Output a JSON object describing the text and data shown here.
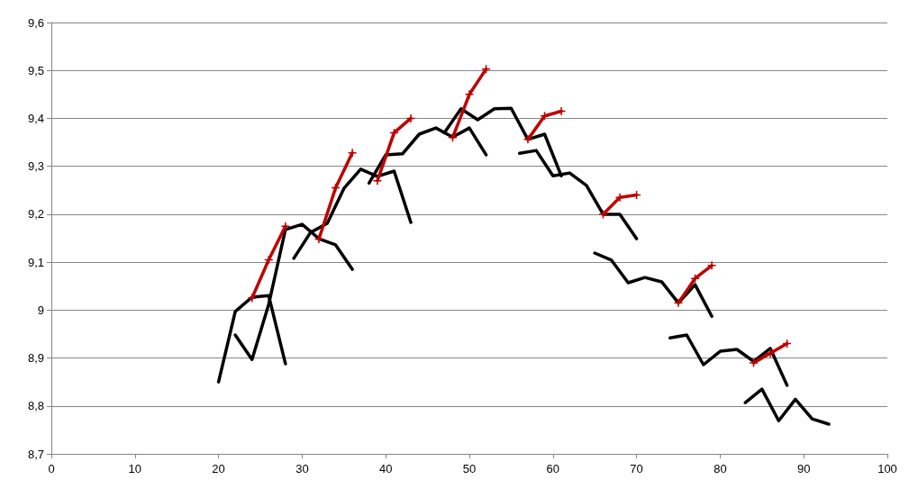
{
  "chart_data": {
    "type": "line",
    "grid": "y",
    "line_style": "solid",
    "xlim": [
      0,
      100
    ],
    "xticks": [
      0,
      10,
      20,
      30,
      40,
      50,
      60,
      70,
      80,
      90,
      100
    ],
    "ylim": [
      8.7,
      9.6
    ],
    "yticks": [
      {
        "value": 8.7,
        "label": "8,7"
      },
      {
        "value": 8.8,
        "label": "8,8"
      },
      {
        "value": 8.9,
        "label": "8,9"
      },
      {
        "value": 9,
        "label": "9"
      },
      {
        "value": 9.1,
        "label": "9,1"
      },
      {
        "value": 9.2,
        "label": "9,2"
      },
      {
        "value": 9.3,
        "label": "9,3"
      },
      {
        "value": 9.4,
        "label": "9,4"
      },
      {
        "value": 9.5,
        "label": "9,5"
      },
      {
        "value": 9.6,
        "label": "9,6"
      }
    ],
    "series": [
      {
        "color": "#000000",
        "marker": "none",
        "x": [
          20,
          22,
          24,
          26,
          28
        ],
        "values": [
          8.85,
          8.997,
          9.027,
          9.03,
          8.888
        ]
      },
      {
        "color": "#000000",
        "marker": "none",
        "x": [
          22,
          24,
          26,
          28,
          30,
          32,
          34,
          36
        ],
        "values": [
          8.948,
          8.897,
          9.012,
          9.168,
          9.179,
          9.149,
          9.136,
          9.085
        ]
      },
      {
        "color": "#000000",
        "marker": "none",
        "x": [
          29,
          31,
          33,
          35,
          37,
          39,
          41,
          43
        ],
        "values": [
          9.108,
          9.162,
          9.181,
          9.254,
          9.294,
          9.279,
          9.29,
          9.183
        ]
      },
      {
        "color": "#000000",
        "marker": "none",
        "x": [
          38,
          40,
          42,
          44,
          46,
          48,
          50,
          52
        ],
        "values": [
          9.265,
          9.324,
          9.326,
          9.367,
          9.38,
          9.361,
          9.38,
          9.324
        ]
      },
      {
        "color": "#000000",
        "marker": "none",
        "x": [
          47,
          49,
          51,
          53,
          55,
          57,
          59,
          61
        ],
        "values": [
          9.37,
          9.42,
          9.397,
          9.42,
          9.421,
          9.356,
          9.367,
          9.28
        ]
      },
      {
        "color": "#000000",
        "marker": "none",
        "x": [
          56,
          58,
          60,
          62,
          64,
          66,
          68,
          70
        ],
        "values": [
          9.327,
          9.333,
          9.28,
          9.286,
          9.26,
          9.2,
          9.2,
          9.149
        ]
      },
      {
        "color": "#000000",
        "marker": "none",
        "x": [
          65,
          67,
          69,
          71,
          73,
          75,
          77,
          79
        ],
        "values": [
          9.119,
          9.104,
          9.057,
          9.068,
          9.059,
          9.015,
          9.053,
          8.987
        ]
      },
      {
        "color": "#000000",
        "marker": "none",
        "x": [
          74,
          76,
          78,
          80,
          82,
          84,
          86,
          88
        ],
        "values": [
          8.942,
          8.948,
          8.886,
          8.914,
          8.918,
          8.893,
          8.92,
          8.843
        ]
      },
      {
        "color": "#000000",
        "marker": "none",
        "x": [
          83,
          85,
          87,
          89,
          91,
          93
        ],
        "values": [
          8.807,
          8.835,
          8.769,
          8.814,
          8.773,
          8.762
        ]
      },
      {
        "color": "#c00000",
        "marker": "cross",
        "x": [
          24,
          26,
          28
        ],
        "values": [
          9.025,
          9.105,
          9.175
        ]
      },
      {
        "color": "#c00000",
        "marker": "cross",
        "x": [
          32,
          34,
          36
        ],
        "values": [
          9.148,
          9.255,
          9.328
        ]
      },
      {
        "color": "#c00000",
        "marker": "cross",
        "x": [
          39,
          41,
          43
        ],
        "values": [
          9.27,
          9.37,
          9.4
        ]
      },
      {
        "color": "#c00000",
        "marker": "cross",
        "x": [
          48,
          50,
          52
        ],
        "values": [
          9.36,
          9.45,
          9.503
        ]
      },
      {
        "color": "#c00000",
        "marker": "cross",
        "x": [
          57,
          59,
          61
        ],
        "values": [
          9.356,
          9.405,
          9.415
        ]
      },
      {
        "color": "#c00000",
        "marker": "cross",
        "x": [
          66,
          68,
          70
        ],
        "values": [
          9.2,
          9.235,
          9.24
        ]
      },
      {
        "color": "#c00000",
        "marker": "cross",
        "x": [
          75,
          77,
          79
        ],
        "values": [
          9.015,
          9.066,
          9.093
        ]
      },
      {
        "color": "#c00000",
        "marker": "cross",
        "x": [
          84,
          86,
          88
        ],
        "values": [
          8.89,
          8.91,
          8.93
        ]
      }
    ]
  }
}
